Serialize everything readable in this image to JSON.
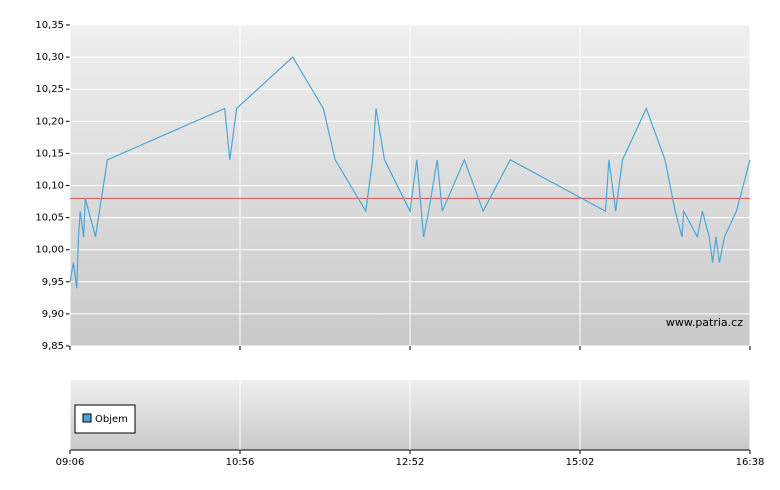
{
  "chart_data": {
    "type": "line",
    "x": [
      0,
      0.02,
      0.04,
      0.05,
      0.06,
      0.08,
      0.09,
      0.15,
      0.22,
      0.91,
      0.94,
      0.98,
      1.31,
      1.49,
      1.56,
      1.74,
      1.78,
      1.8,
      1.85,
      2,
      2.04,
      2.08,
      2.11,
      2.16,
      2.19,
      2.32,
      2.43,
      2.59,
      3.15,
      3.17,
      3.21,
      3.25,
      3.39,
      3.5,
      3.56,
      3.6,
      3.61,
      3.69,
      3.72,
      3.76,
      3.78,
      3.8,
      3.82,
      3.85,
      3.92,
      4
    ],
    "series": [
      {
        "color": "#4aa8d8",
        "values": [
          9.95,
          9.98,
          9.94,
          10.02,
          10.06,
          10.02,
          10.08,
          10.02,
          10.14,
          10.22,
          10.14,
          10.22,
          10.3,
          10.22,
          10.14,
          10.06,
          10.14,
          10.22,
          10.14,
          10.06,
          10.14,
          10.02,
          10.06,
          10.14,
          10.06,
          10.14,
          10.06,
          10.14,
          10.06,
          10.14,
          10.06,
          10.14,
          10.22,
          10.14,
          10.06,
          10.02,
          10.06,
          10.02,
          10.06,
          10.02,
          9.98,
          10.02,
          9.98,
          10.02,
          10.06,
          10.14
        ]
      }
    ],
    "reference_line": {
      "value": 10.08,
      "color": "#e05050"
    },
    "xlim": [
      0,
      4
    ],
    "xticks": [
      {
        "value": 0,
        "label": "09:06"
      },
      {
        "value": 1,
        "label": "10:56"
      },
      {
        "value": 2,
        "label": "12:52"
      },
      {
        "value": 3,
        "label": "15:02"
      },
      {
        "value": 4,
        "label": "16:38"
      }
    ],
    "ylim": [
      9.85,
      10.35
    ],
    "yticks": [
      {
        "value": 9.85,
        "label": "9,85"
      },
      {
        "value": 9.9,
        "label": "9,90"
      },
      {
        "value": 9.95,
        "label": "9,95"
      },
      {
        "value": 10,
        "label": "10,00"
      },
      {
        "value": 10.05,
        "label": "10,05"
      },
      {
        "value": 10.1,
        "label": "10,10"
      },
      {
        "value": 10.15,
        "label": "10,15"
      },
      {
        "value": 10.2,
        "label": "10,20"
      },
      {
        "value": 10.25,
        "label": "10,25"
      },
      {
        "value": 10.3,
        "label": "10,30"
      },
      {
        "value": 10.35,
        "label": "10,35"
      }
    ],
    "grid": true,
    "watermark": "www.patria.cz",
    "volume_panel": {
      "legend": "Objem",
      "color": "#4aa8d8"
    }
  }
}
